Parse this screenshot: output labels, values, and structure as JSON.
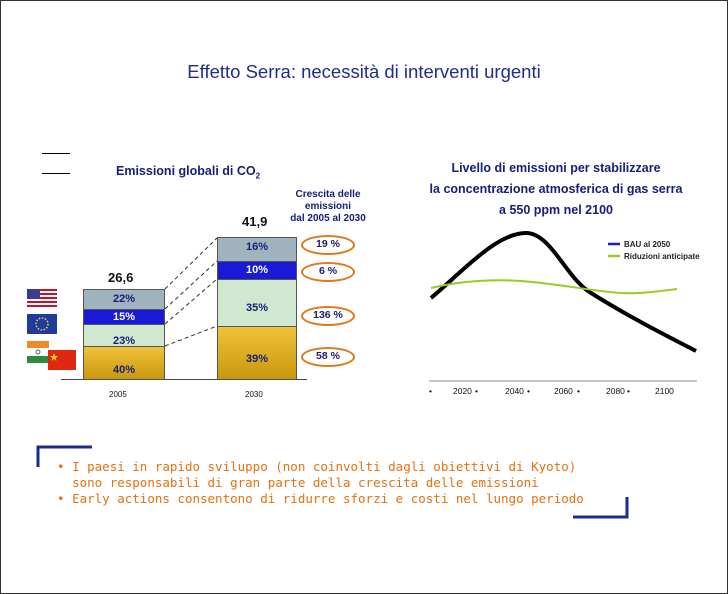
{
  "slide": {
    "title": "Effetto Serra: necessità di interventi urgenti"
  },
  "left_chart": {
    "title": "Emissioni globali di CO",
    "title_sub": "2",
    "growth_header": [
      "Crescita delle",
      "emissioni",
      "dal 2005 al 2030"
    ],
    "flags": [
      "us-flag-icon",
      "eu-flag-icon",
      "india-flag-icon",
      "china-flag-icon"
    ]
  },
  "right_chart": {
    "title_lines": [
      "Livello di emissioni per stabilizzare",
      "la concentrazione atmosferica di gas serra",
      "a 550 ppm nel 2100"
    ],
    "legend": [
      "BAU al 2050",
      "Riduzioni anticipate"
    ],
    "x_ticks": [
      "2020",
      "2040",
      "2060",
      "2080",
      "2100"
    ]
  },
  "chart_data": [
    {
      "type": "bar",
      "title": "Emissioni globali di CO2",
      "categories": [
        "2005",
        "2030"
      ],
      "totals": [
        "26,6",
        "41,9"
      ],
      "series": [
        {
          "name": "",
          "values": [
            "22%",
            "16%"
          ],
          "color": "#9fb2bd"
        },
        {
          "name": "",
          "values": [
            "15%",
            "10%"
          ],
          "color": "#1a1ad6"
        },
        {
          "name": "",
          "values": [
            "23%",
            "35%"
          ],
          "color": "#cfe8cf"
        },
        {
          "name": "",
          "values": [
            "40%",
            "39%"
          ],
          "color": "#d9a819"
        }
      ],
      "growth": [
        "19 %",
        "6 %",
        "136 %",
        "58 %"
      ]
    },
    {
      "type": "line",
      "title": "Livello di emissioni per stabilizzare la concentrazione atmosferica di gas serra a 550 ppm nel 2100",
      "x_ticks": [
        "2020",
        "2040",
        "2060",
        "2080",
        "2100"
      ],
      "series": [
        {
          "name": "BAU al 2050",
          "color": "#000000"
        },
        {
          "name": "Riduzioni anticipate",
          "color": "#99cc22"
        }
      ]
    }
  ],
  "bullets": [
    {
      "marker": "•",
      "lines": [
        "I paesi in rapido sviluppo (non coinvolti dagli obiettivi di Kyoto)",
        "sono responsabili di gran parte della crescita delle emissioni"
      ]
    },
    {
      "marker": "•",
      "lines": [
        "Early actions consentono di ridurre sforzi e costi nel lungo periodo"
      ]
    }
  ]
}
